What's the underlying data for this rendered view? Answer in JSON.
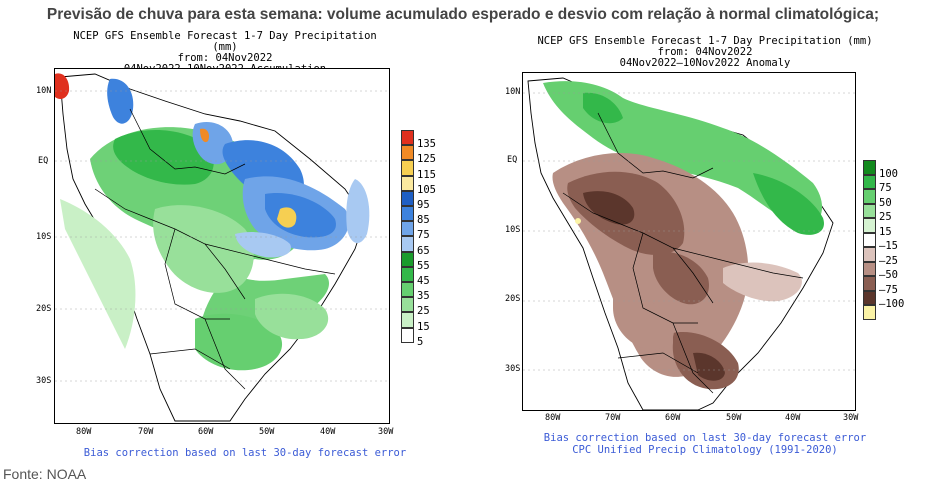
{
  "headline": "Previsão de chuva para esta semana: volume acumulado esperado e desvio com relação à normal climatológica;",
  "source": "Fonte: NOAA",
  "maps": [
    {
      "title_line1": "NCEP GFS Ensemble Forecast 1-7 Day Precipitation (mm)",
      "title_line2": "from: 04Nov2022",
      "title_line3": "04Nov2022–10Nov2022 Accumulation",
      "note": "Bias correction based on last 30-day forecast error",
      "lat_labels": [
        "10N",
        "EQ",
        "10S",
        "20S",
        "30S"
      ],
      "lon_labels": [
        "80W",
        "70W",
        "60W",
        "50W",
        "40W",
        "30W"
      ],
      "legend": [
        {
          "label": "135",
          "color": "#e0301e"
        },
        {
          "label": "125",
          "color": "#f08a25"
        },
        {
          "label": "115",
          "color": "#f6cf52"
        },
        {
          "label": "105",
          "color": "#fbe99f"
        },
        {
          "label": "95",
          "color": "#1f5fc4"
        },
        {
          "label": "85",
          "color": "#3d82dd"
        },
        {
          "label": "75",
          "color": "#6fa4e8"
        },
        {
          "label": "65",
          "color": "#a8c9f2"
        },
        {
          "label": "55",
          "color": "#1a9b2c"
        },
        {
          "label": "45",
          "color": "#33b84a"
        },
        {
          "label": "35",
          "color": "#66cf70"
        },
        {
          "label": "25",
          "color": "#98e09a"
        },
        {
          "label": "15",
          "color": "#c9f0c6"
        },
        {
          "label": "5",
          "color": "#ffffff"
        }
      ]
    },
    {
      "title_line1": "NCEP GFS Ensemble Forecast 1-7 Day Precipitation (mm)",
      "title_line2": "from: 04Nov2022",
      "title_line3": "04Nov2022–10Nov2022 Anomaly",
      "note": "Bias correction based on last 30-day forecast error",
      "note2": "CPC Unified Precip Climatology (1991-2020)",
      "lat_labels": [
        "10N",
        "EQ",
        "10S",
        "20S",
        "30S"
      ],
      "lon_labels": [
        "80W",
        "70W",
        "60W",
        "50W",
        "40W",
        "30W"
      ],
      "legend": [
        {
          "label": "100",
          "color": "#138a1e"
        },
        {
          "label": "75",
          "color": "#33b84a"
        },
        {
          "label": "50",
          "color": "#66cf70"
        },
        {
          "label": "25",
          "color": "#98e09a"
        },
        {
          "label": "15",
          "color": "#d6f3d2"
        },
        {
          "label": "–15",
          "color": "#ffffff"
        },
        {
          "label": "–25",
          "color": "#dcc3bc"
        },
        {
          "label": "–50",
          "color": "#b78f84"
        },
        {
          "label": "–75",
          "color": "#8a5e52"
        },
        {
          "label": "–100",
          "color": "#5b362c"
        },
        {
          "label": "",
          "color": "#fbf3a6"
        }
      ]
    }
  ]
}
